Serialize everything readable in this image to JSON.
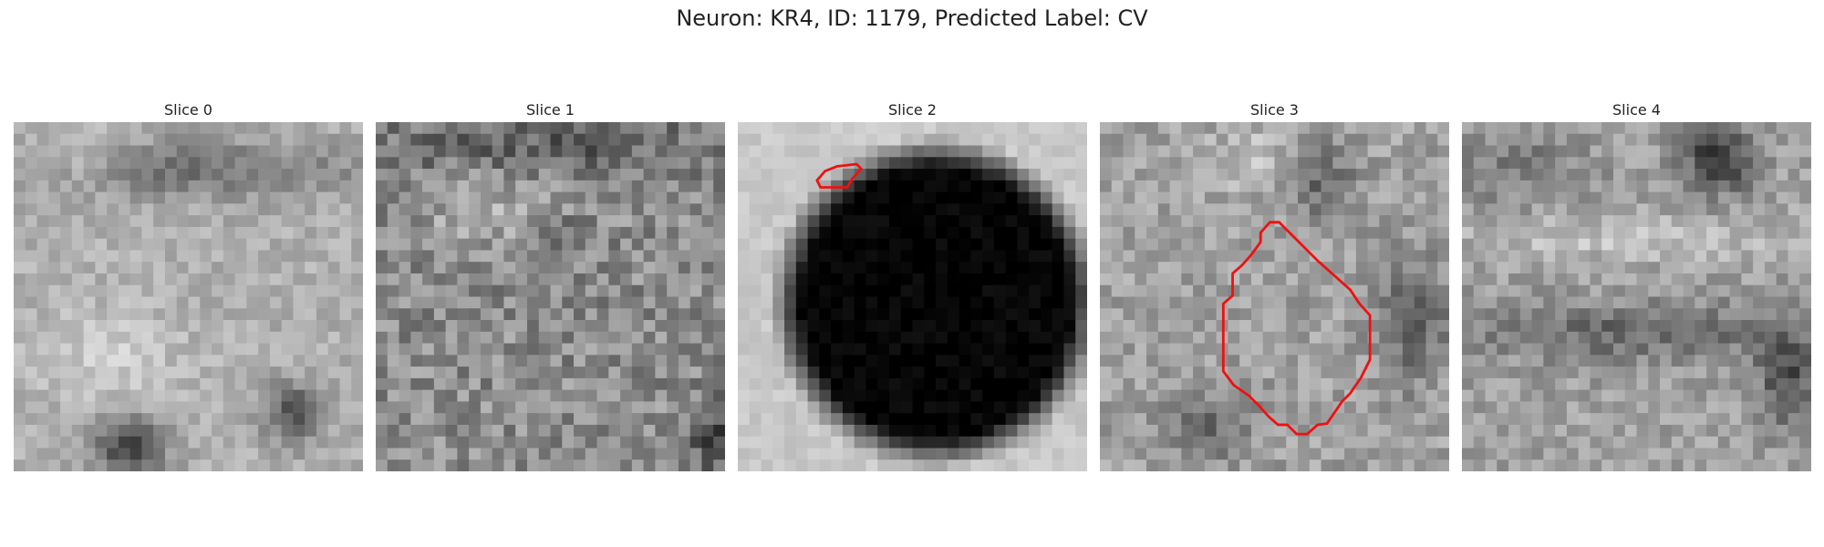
{
  "figure": {
    "title": "Neuron: KR4, ID: 1179, Predicted Label: CV"
  },
  "colors": {
    "contour": "#ee1111"
  },
  "slices": [
    {
      "title": "Slice 0",
      "has_contour": false
    },
    {
      "title": "Slice 1",
      "has_contour": false
    },
    {
      "title": "Slice 2",
      "has_contour": true
    },
    {
      "title": "Slice 3",
      "has_contour": true
    },
    {
      "title": "Slice 4",
      "has_contour": false
    }
  ]
}
